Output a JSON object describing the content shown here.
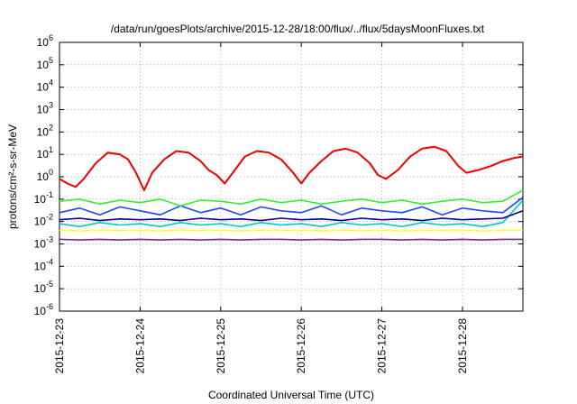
{
  "chart_data": {
    "type": "line",
    "title": "/data/run/goesPlots/archive/2015-12-28/18:00/flux/../flux/5daysMoonFluxes.txt",
    "xlabel": "Coordinated Universal Time (UTC)",
    "ylabel": "protons/cm²-s-sr-MeV",
    "yscale": "log",
    "ylim": [
      1e-06,
      1000000.0
    ],
    "xlim": [
      0,
      5.75
    ],
    "y_ticks": [
      {
        "exp": "-6",
        "value": 1e-06
      },
      {
        "exp": "-5",
        "value": 1e-05
      },
      {
        "exp": "-4",
        "value": 0.0001
      },
      {
        "exp": "-3",
        "value": 0.001
      },
      {
        "exp": "-2",
        "value": 0.01
      },
      {
        "exp": "-1",
        "value": 0.1
      },
      {
        "exp": "0",
        "value": 1
      },
      {
        "exp": "1",
        "value": 10
      },
      {
        "exp": "2",
        "value": 100
      },
      {
        "exp": "3",
        "value": 1000
      },
      {
        "exp": "4",
        "value": 10000
      },
      {
        "exp": "5",
        "value": 100000
      },
      {
        "exp": "6",
        "value": 1000000
      }
    ],
    "x_ticks": [
      {
        "label": "2015-12-23",
        "day": 0
      },
      {
        "label": "2015-12-24",
        "day": 1
      },
      {
        "label": "2015-12-25",
        "day": 2
      },
      {
        "label": "2015-12-26",
        "day": 3
      },
      {
        "label": "2015-12-27",
        "day": 4
      },
      {
        "label": "2015-12-28",
        "day": 5
      }
    ],
    "grid": true,
    "legend": "none",
    "series": [
      {
        "color": "#7b2a78",
        "x": [
          0,
          0.25,
          0.5,
          0.75,
          1,
          1.25,
          1.5,
          1.75,
          2,
          2.25,
          2.5,
          2.75,
          3,
          3.25,
          3.5,
          3.75,
          4,
          4.25,
          4.5,
          4.75,
          5,
          5.25,
          5.5,
          5.75
        ],
        "y": [
          0.0016,
          0.0015,
          0.0016,
          0.0015,
          0.0016,
          0.0015,
          0.0016,
          0.0015,
          0.0016,
          0.0015,
          0.0016,
          0.0016,
          0.0015,
          0.0016,
          0.0015,
          0.0016,
          0.0016,
          0.0015,
          0.0016,
          0.0015,
          0.0016,
          0.0015,
          0.0016,
          0.0016
        ]
      },
      {
        "color": "#ffff33",
        "x": [
          0,
          0.25,
          0.5,
          0.75,
          1,
          1.25,
          1.5,
          1.75,
          2,
          2.25,
          2.5,
          2.75,
          3,
          3.25,
          3.5,
          3.75,
          4,
          4.25,
          4.5,
          4.75,
          5,
          5.25,
          5.5,
          5.75
        ],
        "y": [
          0.004,
          0.0038,
          0.004,
          0.0039,
          0.004,
          0.0038,
          0.004,
          0.0039,
          0.004,
          0.0038,
          0.004,
          0.0039,
          0.004,
          0.0038,
          0.004,
          0.0039,
          0.004,
          0.0038,
          0.004,
          0.0039,
          0.004,
          0.0038,
          0.004,
          0.004
        ]
      },
      {
        "color": "#00c8c8",
        "x": [
          0,
          0.25,
          0.5,
          0.75,
          1,
          1.25,
          1.5,
          1.75,
          2,
          2.25,
          2.5,
          2.75,
          3,
          3.25,
          3.5,
          3.75,
          4,
          4.25,
          4.5,
          4.75,
          5,
          5.25,
          5.5,
          5.75
        ],
        "y": [
          0.008,
          0.006,
          0.009,
          0.007,
          0.008,
          0.006,
          0.009,
          0.007,
          0.008,
          0.006,
          0.009,
          0.007,
          0.008,
          0.006,
          0.009,
          0.007,
          0.008,
          0.006,
          0.009,
          0.007,
          0.008,
          0.006,
          0.009,
          0.09
        ]
      },
      {
        "color": "#2244ff",
        "x": [
          0,
          0.25,
          0.5,
          0.75,
          1,
          1.25,
          1.5,
          1.75,
          2,
          2.25,
          2.5,
          2.75,
          3,
          3.25,
          3.5,
          3.75,
          4,
          4.25,
          4.5,
          4.75,
          5,
          5.25,
          5.5,
          5.75
        ],
        "y": [
          0.025,
          0.04,
          0.02,
          0.045,
          0.03,
          0.02,
          0.05,
          0.025,
          0.04,
          0.02,
          0.045,
          0.03,
          0.025,
          0.05,
          0.02,
          0.04,
          0.03,
          0.025,
          0.045,
          0.02,
          0.04,
          0.03,
          0.025,
          0.12
        ]
      },
      {
        "color": "#00008b",
        "x": [
          0,
          0.25,
          0.5,
          0.75,
          1,
          1.25,
          1.5,
          1.75,
          2,
          2.25,
          2.5,
          2.75,
          3,
          3.25,
          3.5,
          3.75,
          4,
          4.25,
          4.5,
          4.75,
          5,
          5.25,
          5.5,
          5.75
        ],
        "y": [
          0.012,
          0.014,
          0.011,
          0.013,
          0.012,
          0.013,
          0.011,
          0.014,
          0.012,
          0.013,
          0.011,
          0.014,
          0.012,
          0.013,
          0.011,
          0.014,
          0.012,
          0.013,
          0.011,
          0.014,
          0.012,
          0.013,
          0.014,
          0.03
        ]
      },
      {
        "color": "#33ee33",
        "x": [
          0,
          0.25,
          0.5,
          0.75,
          1,
          1.25,
          1.5,
          1.75,
          2,
          2.25,
          2.5,
          2.75,
          3,
          3.25,
          3.5,
          3.75,
          4,
          4.25,
          4.5,
          4.75,
          5,
          5.25,
          5.5,
          5.75
        ],
        "y": [
          0.08,
          0.1,
          0.06,
          0.09,
          0.07,
          0.1,
          0.05,
          0.09,
          0.08,
          0.06,
          0.1,
          0.07,
          0.09,
          0.06,
          0.08,
          0.1,
          0.07,
          0.09,
          0.06,
          0.08,
          0.1,
          0.07,
          0.08,
          0.25
        ]
      },
      {
        "color": "#ee0000",
        "x": [
          0,
          0.1,
          0.2,
          0.3,
          0.45,
          0.6,
          0.75,
          0.85,
          0.95,
          1.05,
          1.15,
          1.3,
          1.45,
          1.6,
          1.75,
          1.85,
          1.95,
          2.05,
          2.15,
          2.3,
          2.45,
          2.6,
          2.75,
          2.9,
          3.0,
          3.1,
          3.25,
          3.4,
          3.55,
          3.7,
          3.85,
          3.95,
          4.05,
          4.2,
          4.35,
          4.5,
          4.65,
          4.8,
          4.95,
          5.05,
          5.2,
          5.35,
          5.5,
          5.65,
          5.75
        ],
        "y": [
          0.8,
          0.5,
          0.35,
          0.8,
          4,
          12,
          10,
          6,
          1.5,
          0.25,
          1.5,
          6,
          14,
          12,
          5,
          2,
          1.2,
          0.5,
          1.5,
          8,
          14,
          12,
          6,
          1.5,
          0.5,
          1.5,
          5,
          14,
          18,
          12,
          4,
          1.2,
          0.8,
          2,
          8,
          18,
          22,
          14,
          3,
          1.5,
          2,
          3,
          5,
          7,
          8
        ]
      }
    ]
  }
}
